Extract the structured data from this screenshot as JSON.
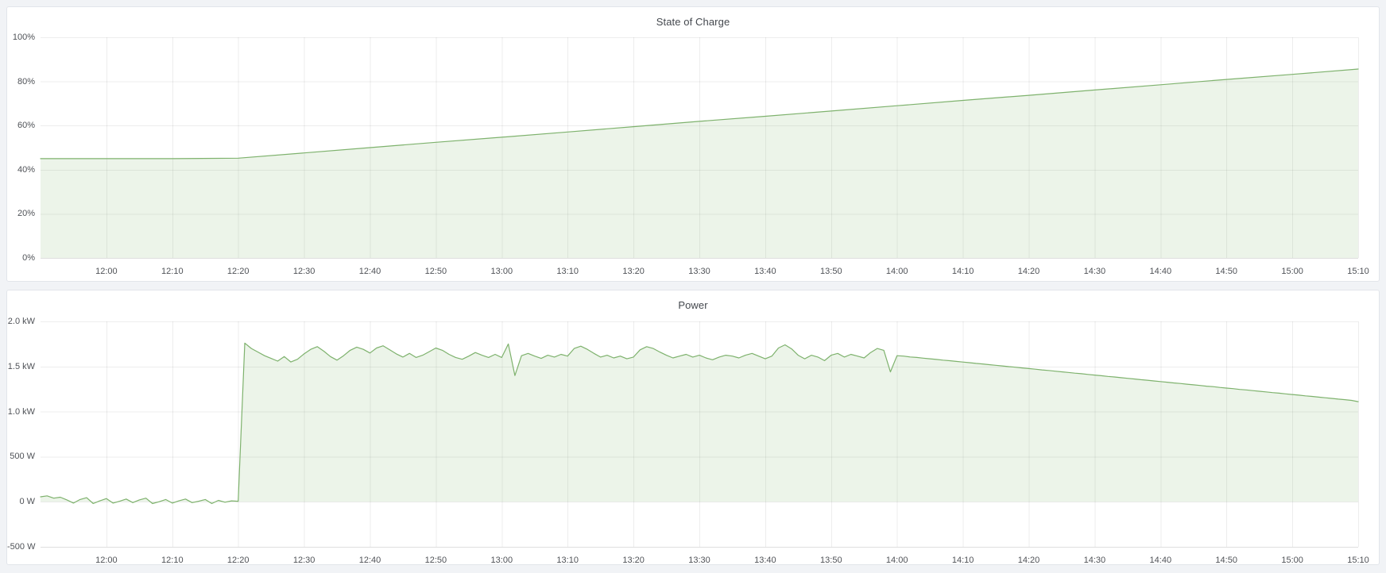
{
  "dashboard": {
    "background_color": "#f1f3f6",
    "panel_background": "#ffffff",
    "panel_border_color": "#e2e5ea",
    "grid_color": "rgba(0,0,0,0.07)",
    "axis_line_color": "rgba(0,0,0,0.13)",
    "tick_label_color": "#4f5257",
    "title_color": "#44484e",
    "series_green": "#7eb26d"
  },
  "chart_data": [
    {
      "id": "soc",
      "type": "area",
      "title": "State of Charge",
      "xlabel": "",
      "ylabel": "",
      "legend": "none",
      "grid": true,
      "x_range_minutes": [
        0,
        200
      ],
      "x_ticks": {
        "t_start": 10,
        "t_step": 10,
        "labels": [
          "12:00",
          "12:10",
          "12:20",
          "12:30",
          "12:40",
          "12:50",
          "13:00",
          "13:10",
          "13:20",
          "13:30",
          "13:40",
          "13:50",
          "14:00",
          "14:10",
          "14:20",
          "14:30",
          "14:40",
          "14:50",
          "15:00",
          "15:10"
        ]
      },
      "y_range": [
        0,
        100
      ],
      "y_ticks": [
        {
          "v": 0,
          "label": "0%"
        },
        {
          "v": 20,
          "label": "20%"
        },
        {
          "v": 40,
          "label": "40%"
        },
        {
          "v": 60,
          "label": "60%"
        },
        {
          "v": 80,
          "label": "80%"
        },
        {
          "v": 100,
          "label": "100%"
        }
      ],
      "series": [
        {
          "name": "State of Charge (%)",
          "color": "#7eb26d",
          "fill": "rgba(126,178,109,0.15)",
          "baseline": 0,
          "points": {
            "t": [
              0,
              10,
              20,
              30,
              40,
              50,
              60,
              70,
              80,
              90,
              100,
              110,
              120,
              130,
              140,
              150,
              160,
              170,
              180,
              190,
              200
            ],
            "v": [
              45,
              45,
              45,
              45.2,
              47.6,
              50.0,
              52.4,
              54.7,
              57.1,
              59.5,
              61.9,
              64.2,
              66.6,
              69.0,
              71.4,
              73.7,
              76.1,
              78.5,
              80.9,
              83.2,
              85.6
            ]
          }
        }
      ]
    },
    {
      "id": "power",
      "type": "area",
      "title": "Power",
      "xlabel": "",
      "ylabel": "",
      "legend": "none",
      "grid": true,
      "x_range_minutes": [
        0,
        200
      ],
      "x_ticks": {
        "t_start": 10,
        "t_step": 10,
        "labels": [
          "12:00",
          "12:10",
          "12:20",
          "12:30",
          "12:40",
          "12:50",
          "13:00",
          "13:10",
          "13:20",
          "13:30",
          "13:40",
          "13:50",
          "14:00",
          "14:10",
          "14:20",
          "14:30",
          "14:40",
          "14:50",
          "15:00",
          "15:10"
        ]
      },
      "y_range": [
        -500,
        2000
      ],
      "y_ticks": [
        {
          "v": -500,
          "label": "-500 W"
        },
        {
          "v": 0,
          "label": "0 W"
        },
        {
          "v": 500,
          "label": "500 W"
        },
        {
          "v": 1000,
          "label": "1.0 kW"
        },
        {
          "v": 1500,
          "label": "1.5 kW"
        },
        {
          "v": 2000,
          "label": "2.0 kW"
        }
      ],
      "series": [
        {
          "name": "Power (W)",
          "color": "#7eb26d",
          "fill": "rgba(126,178,109,0.15)",
          "baseline": 0,
          "points": {
            "t_start": 0,
            "t_step": 1,
            "v": [
              55,
              65,
              40,
              50,
              20,
              -15,
              25,
              45,
              -20,
              10,
              35,
              -15,
              5,
              30,
              -10,
              20,
              40,
              -20,
              0,
              25,
              -15,
              10,
              30,
              -10,
              5,
              25,
              -20,
              15,
              -5,
              10,
              5,
              1760,
              1700,
              1660,
              1620,
              1590,
              1560,
              1610,
              1550,
              1580,
              1640,
              1690,
              1720,
              1670,
              1610,
              1570,
              1620,
              1680,
              1715,
              1690,
              1650,
              1705,
              1730,
              1685,
              1640,
              1605,
              1645,
              1600,
              1625,
              1665,
              1705,
              1680,
              1635,
              1600,
              1580,
              1615,
              1655,
              1625,
              1600,
              1635,
              1600,
              1750,
              1400,
              1620,
              1645,
              1615,
              1590,
              1625,
              1605,
              1635,
              1615,
              1700,
              1725,
              1690,
              1645,
              1605,
              1625,
              1595,
              1615,
              1585,
              1605,
              1685,
              1720,
              1700,
              1660,
              1625,
              1595,
              1615,
              1635,
              1605,
              1625,
              1595,
              1575,
              1605,
              1625,
              1615,
              1595,
              1625,
              1645,
              1615,
              1585,
              1615,
              1705,
              1740,
              1695,
              1625,
              1585,
              1625,
              1605,
              1565,
              1625,
              1645,
              1605,
              1635,
              1615,
              1595,
              1655,
              1700,
              1680,
              1440,
              1620,
              1615,
              1606,
              1600,
              1592,
              1585,
              1578,
              1570,
              1564,
              1556,
              1549,
              1542,
              1534,
              1528,
              1520,
              1513,
              1506,
              1498,
              1492,
              1484,
              1477,
              1470,
              1462,
              1456,
              1448,
              1441,
              1434,
              1426,
              1420,
              1412,
              1405,
              1398,
              1390,
              1384,
              1376,
              1369,
              1362,
              1354,
              1348,
              1340,
              1333,
              1326,
              1318,
              1312,
              1304,
              1297,
              1290,
              1282,
              1276,
              1268,
              1261,
              1254,
              1246,
              1240,
              1232,
              1225,
              1218,
              1210,
              1204,
              1196,
              1189,
              1182,
              1174,
              1168,
              1160,
              1153,
              1146,
              1138,
              1132,
              1124,
              1110
            ]
          }
        }
      ]
    }
  ]
}
